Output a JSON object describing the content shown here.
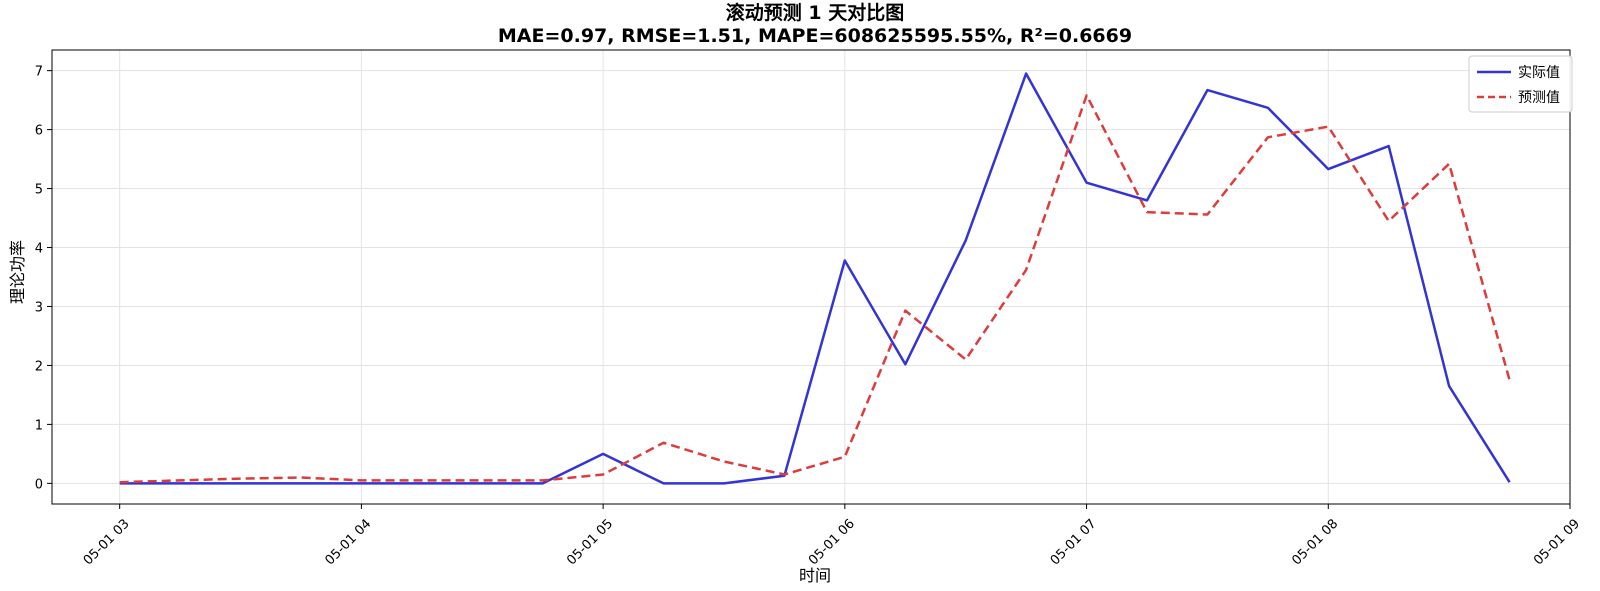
{
  "chart_data": {
    "type": "line",
    "title": "滚动预测 1 天对比图",
    "subtitle": "MAE=0.97, RMSE=1.51, MAPE=608625595.55%, R²=0.6669",
    "xlabel": "时间",
    "ylabel": "理论功率",
    "x_ticks": [
      "05-01 03",
      "05-01 04",
      "05-01 05",
      "05-01 06",
      "05-01 07",
      "05-01 08",
      "05-01 09"
    ],
    "x_tick_hours": [
      3,
      4,
      5,
      6,
      7,
      8,
      9
    ],
    "y_ticks": [
      "0",
      "1",
      "2",
      "3",
      "4",
      "5",
      "6",
      "7"
    ],
    "xlim": [
      2.72,
      9.0
    ],
    "ylim": [
      -0.35,
      7.35
    ],
    "grid": true,
    "legend_position": "top-right",
    "series": [
      {
        "name": "实际值",
        "color": "#3333d6",
        "style": "solid",
        "x": [
          3.0,
          3.25,
          3.5,
          3.75,
          4.0,
          4.25,
          4.5,
          4.75,
          5.0,
          5.25,
          5.5,
          5.75,
          6.0,
          6.25,
          6.5,
          6.75,
          7.0,
          7.25,
          7.5,
          7.75,
          8.0,
          8.25,
          8.5,
          8.75
        ],
        "values": [
          0.0,
          0.0,
          0.0,
          0.0,
          0.0,
          0.0,
          0.0,
          0.0,
          0.5,
          0.0,
          0.0,
          0.13,
          3.78,
          2.02,
          4.12,
          6.95,
          5.1,
          4.8,
          6.67,
          6.37,
          5.33,
          5.72,
          1.65,
          0.02
        ]
      },
      {
        "name": "预测值",
        "color": "#dd3c3c",
        "style": "dashed",
        "x": [
          3.0,
          3.25,
          3.5,
          3.75,
          4.0,
          4.25,
          4.5,
          4.75,
          5.0,
          5.25,
          5.5,
          5.75,
          6.0,
          6.25,
          6.5,
          6.75,
          7.0,
          7.25,
          7.5,
          7.75,
          8.0,
          8.25,
          8.5,
          8.75
        ],
        "values": [
          0.02,
          0.05,
          0.08,
          0.1,
          0.05,
          0.05,
          0.05,
          0.05,
          0.15,
          0.69,
          0.37,
          0.15,
          0.45,
          2.93,
          2.1,
          3.62,
          6.58,
          4.6,
          4.56,
          5.87,
          6.05,
          4.45,
          5.42,
          1.75
        ]
      }
    ]
  }
}
